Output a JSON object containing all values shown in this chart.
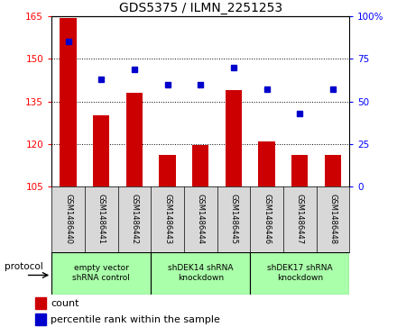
{
  "title": "GDS5375 / ILMN_2251253",
  "samples": [
    "GSM1486440",
    "GSM1486441",
    "GSM1486442",
    "GSM1486443",
    "GSM1486444",
    "GSM1486445",
    "GSM1486446",
    "GSM1486447",
    "GSM1486448"
  ],
  "counts": [
    164.5,
    130.0,
    138.0,
    116.0,
    119.5,
    139.0,
    121.0,
    116.0,
    116.0
  ],
  "percentiles": [
    85,
    63,
    69,
    60,
    60,
    70,
    57,
    43,
    57
  ],
  "ylim_left": [
    105,
    165
  ],
  "ylim_right": [
    0,
    100
  ],
  "yticks_left": [
    105,
    120,
    135,
    150,
    165
  ],
  "yticks_right": [
    0,
    25,
    50,
    75,
    100
  ],
  "bar_color": "#cc0000",
  "dot_color": "#0000cc",
  "bar_width": 0.5,
  "groups": [
    {
      "label": "empty vector\nshRNA control",
      "start": 0,
      "end": 2,
      "color": "#aaffaa"
    },
    {
      "label": "shDEK14 shRNA\nknockdown",
      "start": 3,
      "end": 5,
      "color": "#aaffaa"
    },
    {
      "label": "shDEK17 shRNA\nknockdown",
      "start": 6,
      "end": 8,
      "color": "#aaffaa"
    }
  ],
  "protocol_label": "protocol",
  "legend_count_label": "count",
  "legend_percentile_label": "percentile rank within the sample",
  "background_color": "#ffffff",
  "sample_bg_color": "#d8d8d8"
}
